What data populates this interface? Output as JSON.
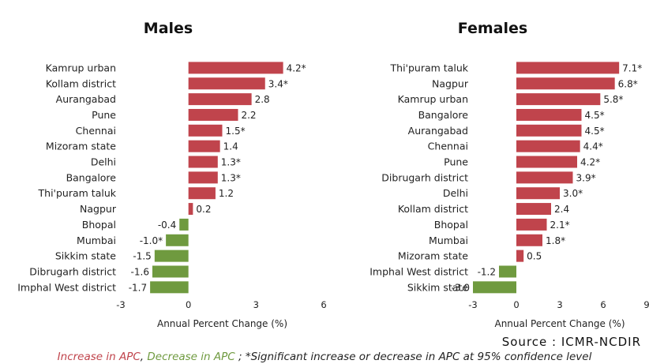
{
  "chart_data": [
    {
      "type": "bar",
      "orientation": "horizontal",
      "title": "Males",
      "categories": [
        "Kamrup urban",
        "Kollam district",
        "Aurangabad",
        "Pune",
        "Chennai",
        "Mizoram state",
        "Delhi",
        "Bangalore",
        "Thi'puram taluk",
        "Nagpur",
        "Bhopal",
        "Mumbai",
        "Sikkim state",
        "Dibrugarh district",
        "Imphal West district"
      ],
      "values": [
        4.2,
        3.4,
        2.8,
        2.2,
        1.5,
        1.4,
        1.3,
        1.3,
        1.2,
        0.2,
        -0.4,
        -1.0,
        -1.5,
        -1.6,
        -1.7
      ],
      "value_labels": [
        "4.2*",
        "3.4*",
        "2.8",
        "2.2",
        "1.5*",
        "1.4",
        "1.3*",
        "1.3*",
        "1.2",
        "0.2",
        "-0.4",
        "-1.0*",
        "-1.5",
        "-1.6",
        "-1.7"
      ],
      "xlabel": "Annual Percent Change (%)",
      "xlim": [
        -3,
        6
      ],
      "xticks": [
        -3,
        0,
        3,
        6
      ],
      "grid": false
    },
    {
      "type": "bar",
      "orientation": "horizontal",
      "title": "Females",
      "categories": [
        "Thi'puram taluk",
        "Nagpur",
        "Kamrup urban",
        "Bangalore",
        "Aurangabad",
        "Chennai",
        "Pune",
        "Dibrugarh district",
        "Delhi",
        "Kollam district",
        "Bhopal",
        "Mumbai",
        "Mizoram state",
        "Imphal West district",
        "Sikkim state"
      ],
      "values": [
        7.1,
        6.8,
        5.8,
        4.5,
        4.5,
        4.4,
        4.2,
        3.9,
        3.0,
        2.4,
        2.1,
        1.8,
        0.5,
        -1.2,
        -3.0
      ],
      "value_labels": [
        "7.1*",
        "6.8*",
        "5.8*",
        "4.5*",
        "4.5*",
        "4.4*",
        "4.2*",
        "3.9*",
        "3.0*",
        "2.4",
        "2.1*",
        "1.8*",
        "0.5",
        "-1.2",
        "-3.0"
      ],
      "xlabel": "Annual Percent Change (%)",
      "xlim": [
        -3,
        9
      ],
      "xticks": [
        -3,
        0,
        3,
        6,
        9
      ],
      "grid": false
    }
  ],
  "colors": {
    "increase": "#c0444c",
    "decrease": "#6f9a3f",
    "text": "#222222"
  },
  "source": "Source : ICMR-NCDIR",
  "footnote": {
    "increase_text": "Increase in APC",
    "sep": ", ",
    "decrease_text": "Decrease in APC",
    "rest": " ; *Significant increase or decrease in APC at 95% confidence level"
  }
}
